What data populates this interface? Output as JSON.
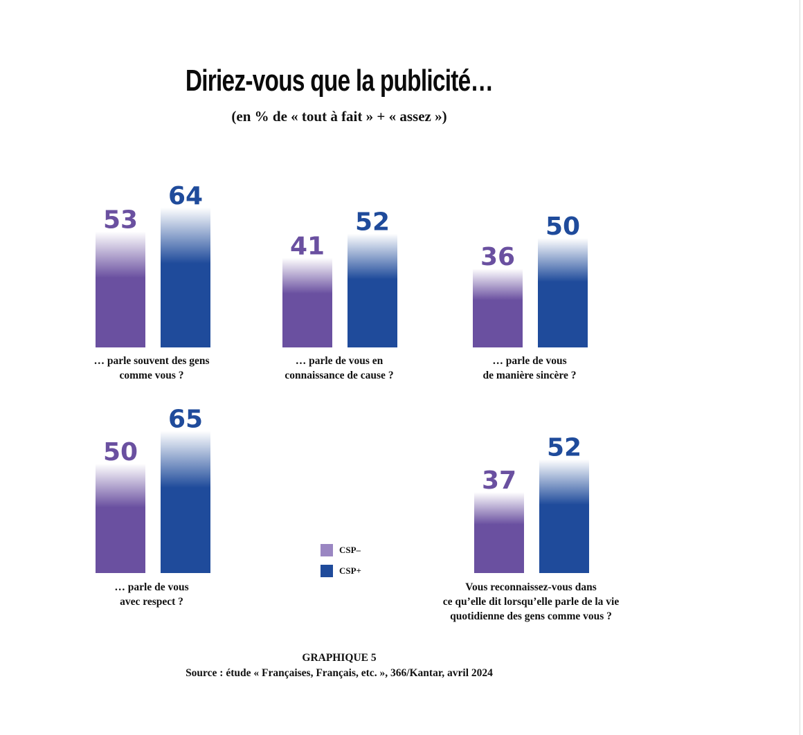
{
  "title": "Diriez-vous que la publicité…",
  "subtitle": "(en % de « tout à fait » + « assez »)",
  "colors": {
    "csp_minus": "#6a50a0",
    "csp_minus_legend": "#9a86c2",
    "csp_plus": "#1f4b9b"
  },
  "legend": [
    {
      "label": "CSP–"
    },
    {
      "label": "CSP+"
    }
  ],
  "chart_data": {
    "type": "bar",
    "unit": "%",
    "series": [
      {
        "name": "CSP–",
        "values": [
          53,
          41,
          36,
          50,
          37
        ]
      },
      {
        "name": "CSP+",
        "values": [
          64,
          52,
          50,
          65,
          52
        ]
      }
    ],
    "categories": [
      "… parle souvent des gens comme vous ?",
      "… parle de vous en connaissance de cause ?",
      "… parle de vous de manière sincère ?",
      "… parle de vous avec respect ?",
      "Vous reconnaissez-vous dans ce qu’elle dit lorsqu’elle parle de la vie quotidienne des gens comme vous ?"
    ],
    "caption_lines": [
      [
        "… parle souvent des gens",
        "comme vous ?"
      ],
      [
        "… parle de vous en",
        "connaissance de cause ?"
      ],
      [
        "… parle de vous",
        "de manière sincère ?"
      ],
      [
        "… parle de vous",
        "avec respect ?"
      ],
      [
        "Vous reconnaissez-vous dans",
        "ce qu’elle dit lorsqu’elle parle de la vie",
        "quotidienne des gens comme vous ?"
      ]
    ],
    "legend_position": "center",
    "grid": false
  },
  "footer": {
    "label": "GRAPHIQUE 5",
    "source": "Source : étude « Françaises, Français, etc. », 366/Kantar, avril 2024"
  }
}
